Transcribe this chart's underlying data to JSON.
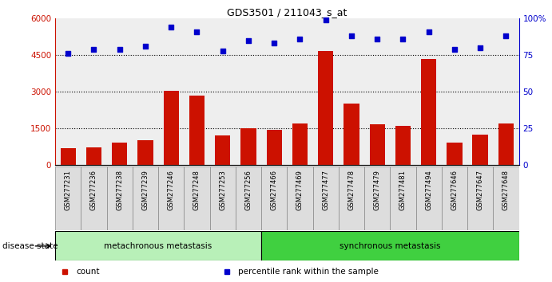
{
  "title": "GDS3501 / 211043_s_at",
  "samples": [
    "GSM277231",
    "GSM277236",
    "GSM277238",
    "GSM277239",
    "GSM277246",
    "GSM277248",
    "GSM277253",
    "GSM277256",
    "GSM277466",
    "GSM277469",
    "GSM277477",
    "GSM277478",
    "GSM277479",
    "GSM277481",
    "GSM277494",
    "GSM277646",
    "GSM277647",
    "GSM277648"
  ],
  "counts": [
    700,
    720,
    900,
    1000,
    3050,
    2850,
    1200,
    1500,
    1450,
    1700,
    4650,
    2500,
    1650,
    1600,
    4350,
    900,
    1250,
    1700
  ],
  "percentiles": [
    76,
    79,
    79,
    81,
    94,
    91,
    78,
    85,
    83,
    86,
    99,
    88,
    86,
    86,
    91,
    79,
    80,
    88
  ],
  "groups": [
    {
      "label": "metachronous metastasis",
      "start": 0,
      "end": 8,
      "color": "#b8f0b8"
    },
    {
      "label": "synchronous metastasis",
      "start": 8,
      "end": 18,
      "color": "#40d040"
    }
  ],
  "bar_color": "#cc1100",
  "dot_color": "#0000cc",
  "left_yaxis_ticks": [
    0,
    1500,
    3000,
    4500,
    6000
  ],
  "right_yaxis_ticks": [
    0,
    25,
    50,
    75,
    100
  ],
  "grid_values": [
    1500,
    3000,
    4500
  ],
  "disease_state_label": "disease state",
  "legend": [
    {
      "label": "count",
      "color": "#cc1100"
    },
    {
      "label": "percentile rank within the sample",
      "color": "#0000cc"
    }
  ],
  "background_color": "#ffffff",
  "plot_bg_color": "#eeeeee",
  "xtick_box_color": "#dddddd",
  "xtick_box_border": "#888888"
}
